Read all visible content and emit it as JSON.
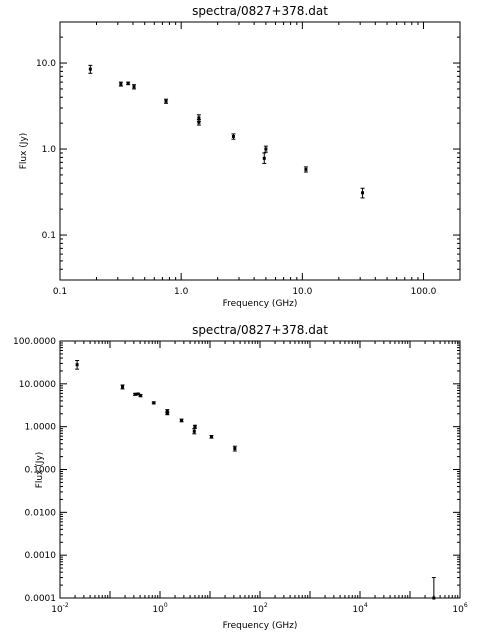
{
  "chart_data": [
    {
      "type": "scatter",
      "title": "spectra/0827+378.dat",
      "xlabel": "Frequency (GHz)",
      "ylabel": "Flux (Jy)",
      "xscale": "log",
      "yscale": "log",
      "xlim": [
        0.1,
        200
      ],
      "ylim": [
        0.03,
        30
      ],
      "xticks": [
        "0.1",
        "1.0",
        "10.0",
        "100.0"
      ],
      "yticks": [
        "0.1",
        "1.0",
        "10.0"
      ],
      "points": [
        {
          "x": 0.178,
          "y": 8.5,
          "ylo": 7.6,
          "yhi": 9.4
        },
        {
          "x": 0.318,
          "y": 5.7,
          "ylo": 5.4,
          "yhi": 6.0
        },
        {
          "x": 0.365,
          "y": 5.8,
          "ylo": 5.6,
          "yhi": 6.0
        },
        {
          "x": 0.408,
          "y": 5.3,
          "ylo": 5.0,
          "yhi": 5.6
        },
        {
          "x": 0.75,
          "y": 3.6,
          "ylo": 3.4,
          "yhi": 3.8
        },
        {
          "x": 1.4,
          "y": 2.3,
          "ylo": 2.1,
          "yhi": 2.5
        },
        {
          "x": 1.4,
          "y": 2.05,
          "ylo": 1.9,
          "yhi": 2.2
        },
        {
          "x": 2.7,
          "y": 1.4,
          "ylo": 1.3,
          "yhi": 1.5
        },
        {
          "x": 4.85,
          "y": 0.78,
          "ylo": 0.68,
          "yhi": 0.9
        },
        {
          "x": 5.0,
          "y": 1.0,
          "ylo": 0.92,
          "yhi": 1.08
        },
        {
          "x": 10.7,
          "y": 0.58,
          "ylo": 0.54,
          "yhi": 0.62
        },
        {
          "x": 31.4,
          "y": 0.31,
          "ylo": 0.27,
          "yhi": 0.35
        }
      ]
    },
    {
      "type": "scatter",
      "title": "spectra/0827+378.dat",
      "xlabel": "Frequency (GHz)",
      "ylabel": "Flux (Jy)",
      "xscale": "log",
      "yscale": "log",
      "xlim": [
        0.01,
        1000000
      ],
      "ylim": [
        0.0001,
        100
      ],
      "xticks": [
        {
          "base": "10",
          "exp": "-2"
        },
        {
          "base": "10",
          "exp": "0"
        },
        {
          "base": "10",
          "exp": "2"
        },
        {
          "base": "10",
          "exp": "4"
        },
        {
          "base": "10",
          "exp": "6"
        }
      ],
      "yticks": [
        "0.0001",
        "0.0010",
        "0.0100",
        "0.1000",
        "1.0000",
        "10.0000",
        "100.0000"
      ],
      "points": [
        {
          "x": 0.022,
          "y": 28,
          "ylo": 22,
          "yhi": 35
        },
        {
          "x": 0.178,
          "y": 8.5,
          "ylo": 7.6,
          "yhi": 9.4
        },
        {
          "x": 0.318,
          "y": 5.7,
          "ylo": 5.4,
          "yhi": 6.0
        },
        {
          "x": 0.365,
          "y": 5.8,
          "ylo": 5.6,
          "yhi": 6.0
        },
        {
          "x": 0.408,
          "y": 5.3,
          "ylo": 5.0,
          "yhi": 5.6
        },
        {
          "x": 0.75,
          "y": 3.6,
          "ylo": 3.4,
          "yhi": 3.8
        },
        {
          "x": 1.4,
          "y": 2.3,
          "ylo": 2.1,
          "yhi": 2.5
        },
        {
          "x": 1.4,
          "y": 2.05,
          "ylo": 1.9,
          "yhi": 2.2
        },
        {
          "x": 2.7,
          "y": 1.4,
          "ylo": 1.3,
          "yhi": 1.5
        },
        {
          "x": 4.85,
          "y": 0.78,
          "ylo": 0.68,
          "yhi": 0.9
        },
        {
          "x": 5.0,
          "y": 1.0,
          "ylo": 0.92,
          "yhi": 1.08
        },
        {
          "x": 10.7,
          "y": 0.58,
          "ylo": 0.54,
          "yhi": 0.62
        },
        {
          "x": 31.4,
          "y": 0.31,
          "ylo": 0.27,
          "yhi": 0.35
        },
        {
          "x": 300000,
          "y": 0.0001,
          "ylo": 0.0001,
          "yhi": 0.0003
        }
      ]
    }
  ]
}
